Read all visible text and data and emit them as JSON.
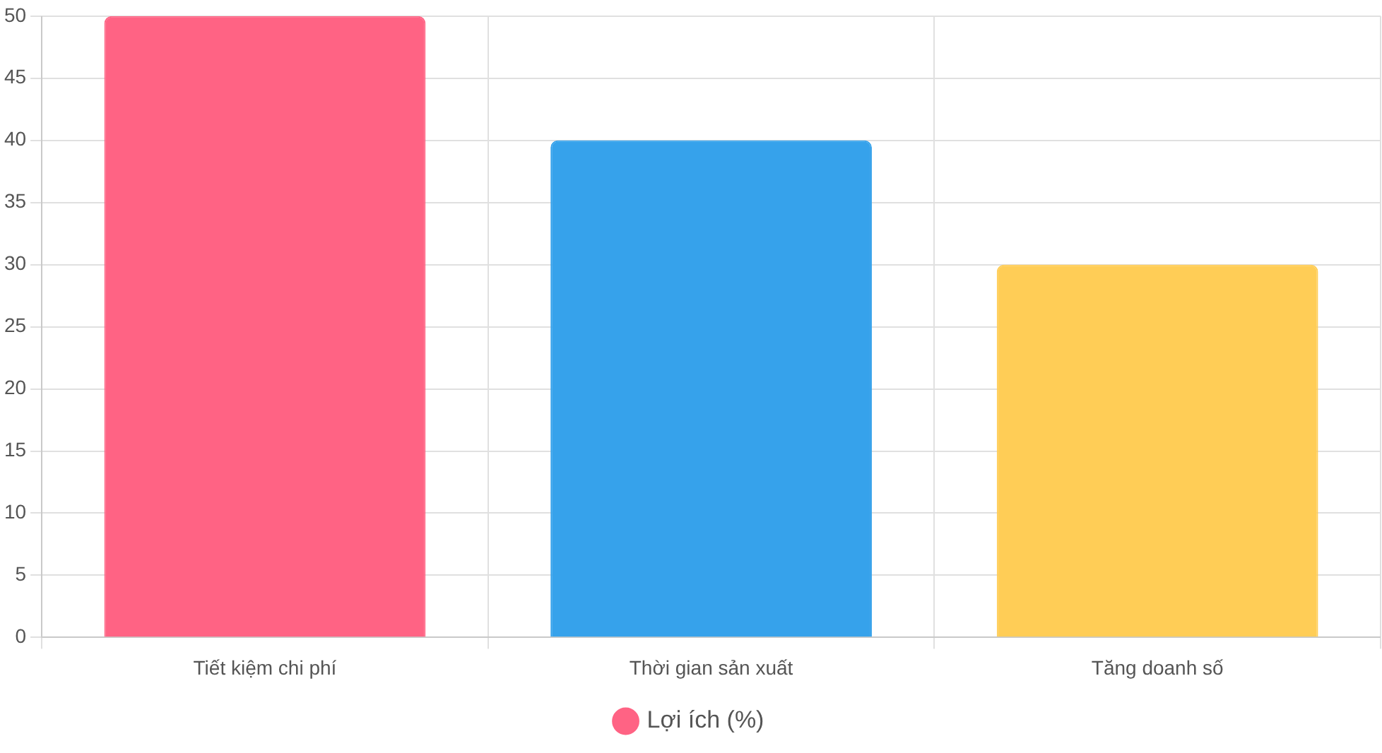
{
  "chart_data": {
    "type": "bar",
    "categories": [
      "Tiết kiệm chi phí",
      "Thời gian sản xuất",
      "Tăng doanh số"
    ],
    "series": [
      {
        "name": "Lợi ích (%)",
        "colors": [
          "#ff6384",
          "#36a2eb",
          "#ffcd56"
        ],
        "values": [
          50,
          40,
          30
        ]
      }
    ],
    "ylim": [
      0,
      50
    ],
    "yticks": [
      0,
      5,
      10,
      15,
      20,
      25,
      30,
      35,
      40,
      45,
      50
    ],
    "grid": true,
    "legend": "bottom"
  }
}
